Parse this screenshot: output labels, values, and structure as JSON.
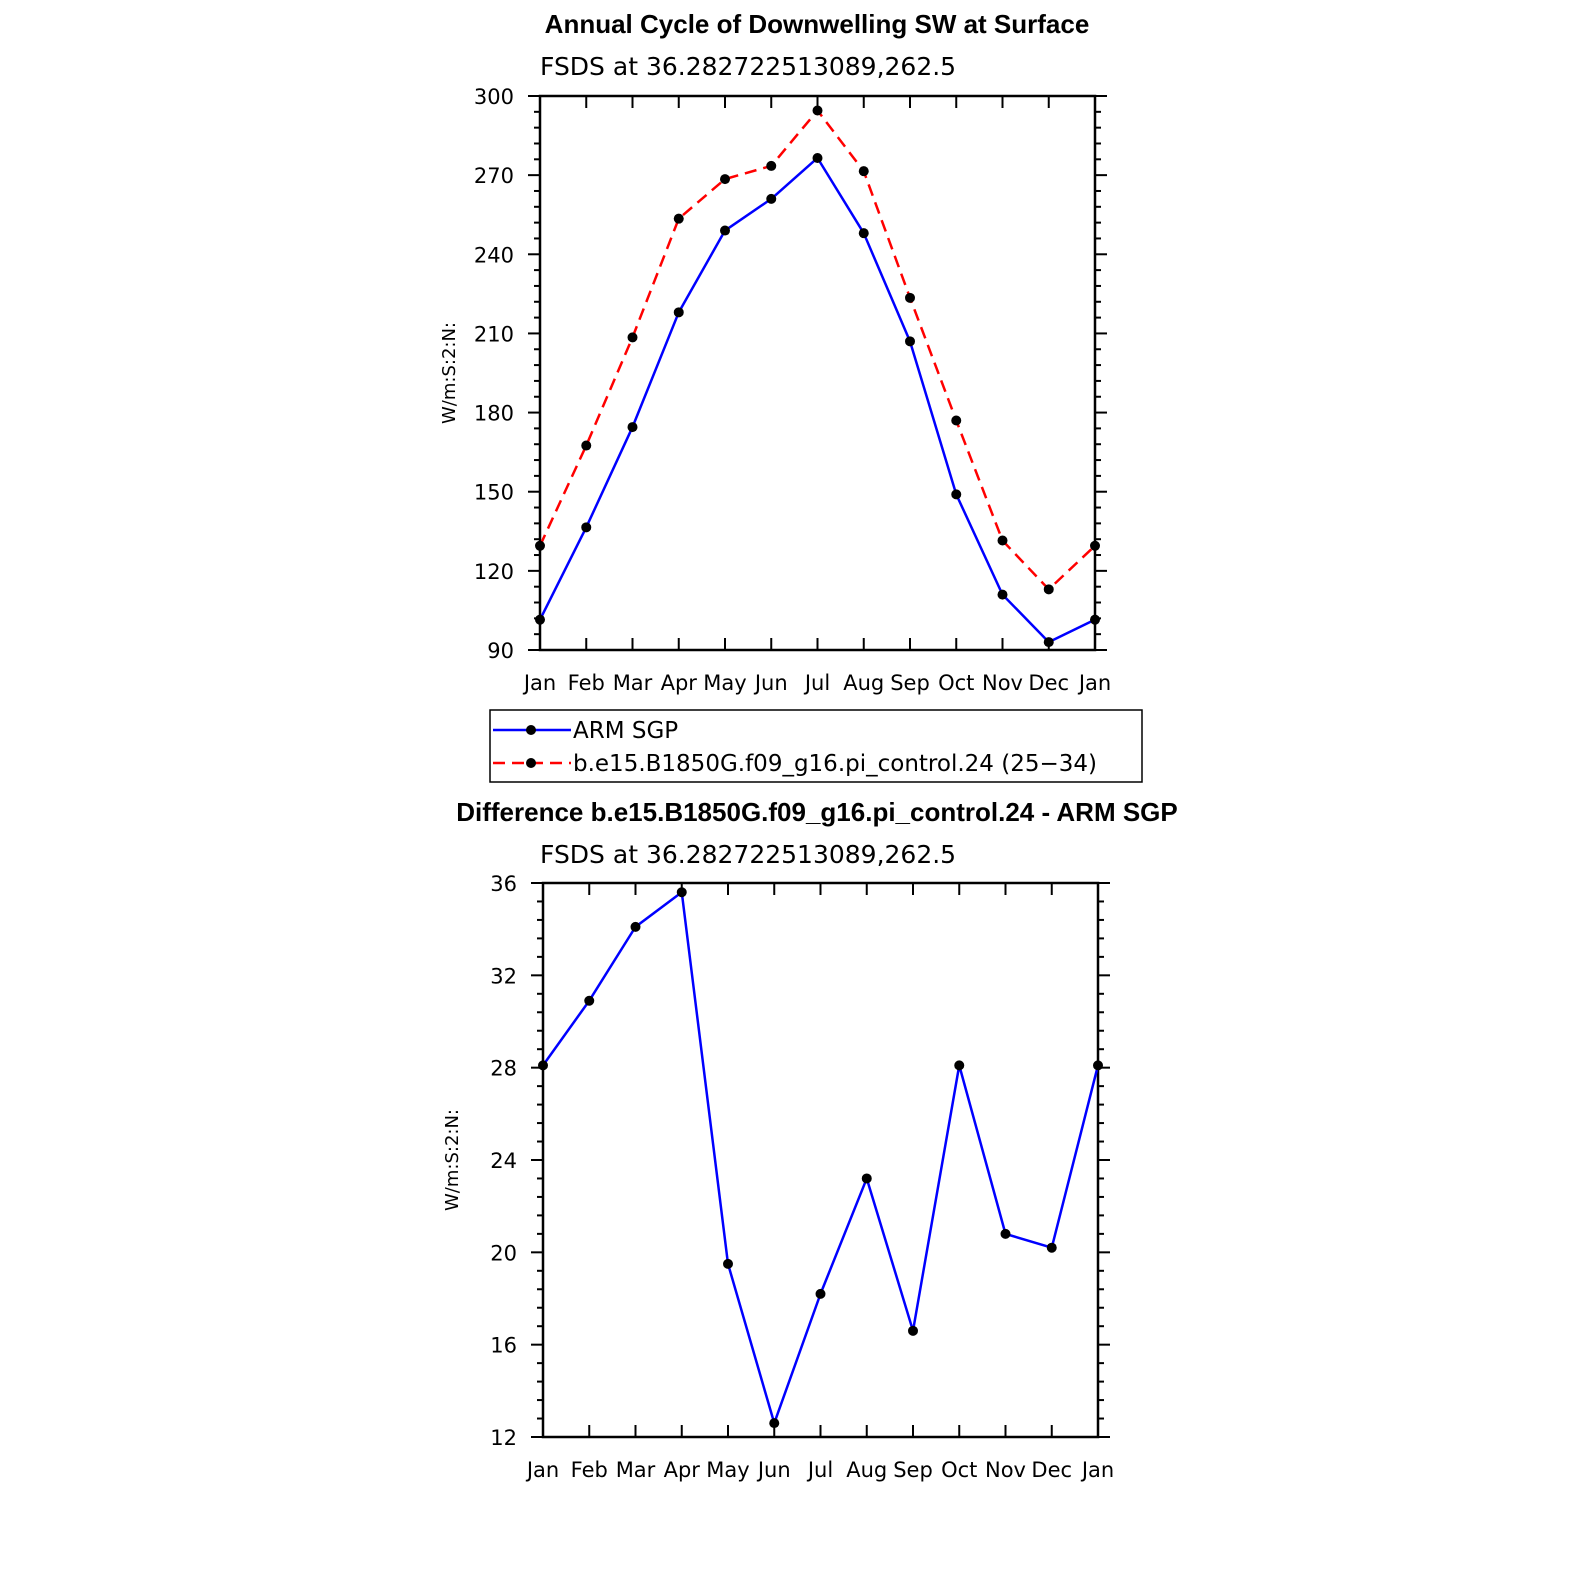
{
  "colors": {
    "obs": "#0000ff",
    "model": "#ff0000",
    "diff": "#0000ff",
    "marker": "#000000"
  },
  "chart_data": [
    {
      "type": "line",
      "title": "Annual Cycle of Downwelling SW at Surface",
      "subtitle": "FSDS at 36.282722513089,262.5",
      "ylabel": "W/m:S:2:N:",
      "categories": [
        "Jan",
        "Feb",
        "Mar",
        "Apr",
        "May",
        "Jun",
        "Jul",
        "Aug",
        "Sep",
        "Oct",
        "Nov",
        "Dec",
        "Jan"
      ],
      "ylim": [
        90,
        300
      ],
      "yticks": [
        90,
        120,
        150,
        180,
        210,
        240,
        270,
        300
      ],
      "series": [
        {
          "name": "ARM SGP",
          "style": "solid",
          "values": [
            101.5,
            136.5,
            174.5,
            218,
            249,
            261,
            276.5,
            248,
            207,
            149,
            111,
            93,
            101.5
          ]
        },
        {
          "name": "b.e15.B1850G.f09_g16.pi_control.24 (25−34)",
          "style": "dashed",
          "values": [
            129.5,
            167.5,
            208.5,
            253.5,
            268.5,
            273.5,
            294.5,
            271.5,
            223.5,
            177,
            131.5,
            113,
            129.5
          ]
        }
      ]
    },
    {
      "type": "line",
      "title": "Difference b.e15.B1850G.f09_g16.pi_control.24 - ARM SGP",
      "subtitle": "FSDS at 36.282722513089,262.5",
      "ylabel": "W/m:S:2:N:",
      "categories": [
        "Jan",
        "Feb",
        "Mar",
        "Apr",
        "May",
        "Jun",
        "Jul",
        "Aug",
        "Sep",
        "Oct",
        "Nov",
        "Dec",
        "Jan"
      ],
      "ylim": [
        12,
        36
      ],
      "yticks": [
        12,
        16,
        20,
        24,
        28,
        32,
        36
      ],
      "series": [
        {
          "values": [
            28.1,
            30.9,
            34.1,
            35.6,
            19.5,
            12.6,
            18.2,
            23.2,
            16.6,
            28.1,
            20.8,
            20.2,
            28.1
          ]
        }
      ]
    }
  ]
}
